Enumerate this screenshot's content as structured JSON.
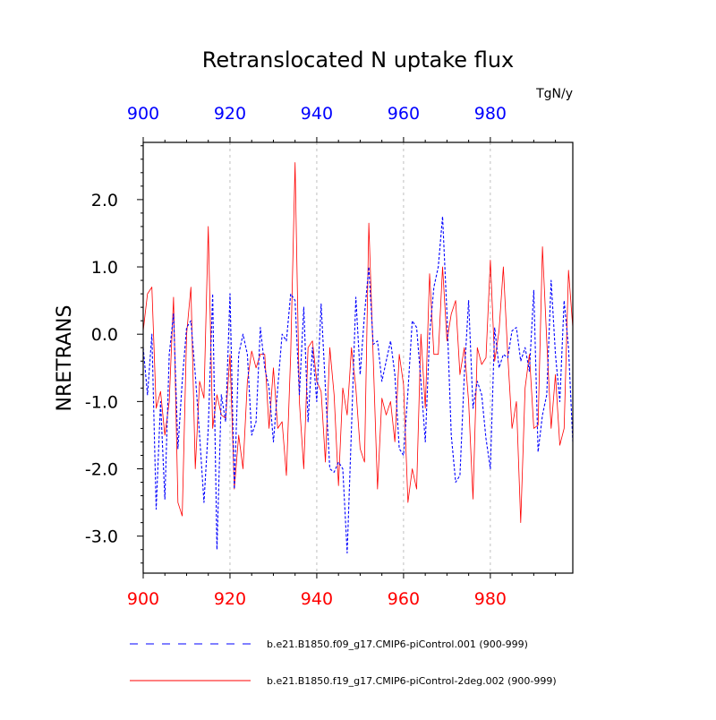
{
  "chart_data": {
    "type": "line",
    "title": "Retranslocated N uptake flux",
    "units": "TgN/y",
    "ylabel": "NRETRANS",
    "xlabel": "",
    "xlim": [
      900,
      999
    ],
    "ylim": [
      -3.55,
      2.85
    ],
    "grid": "vertical dashed at major x ticks",
    "x_ticks": [
      900,
      920,
      940,
      960,
      980
    ],
    "x_tick_labels_top": [
      "900",
      "920",
      "940",
      "960",
      "980"
    ],
    "x_tick_labels_bottom": [
      "900",
      "920",
      "940",
      "960",
      "980"
    ],
    "y_ticks": [
      -3.0,
      -2.0,
      -1.0,
      0.0,
      1.0,
      2.0
    ],
    "y_tick_labels": [
      "-3.0",
      "-2.0",
      "-1.0",
      "0.0",
      "1.0",
      "2.0"
    ],
    "colors": {
      "top_axis_labels": "#0000ff",
      "bottom_axis_labels": "#ff0000",
      "series_1": "#0000ff",
      "series_2": "#ff0000"
    },
    "legend_position": "bottom",
    "series": [
      {
        "name": "b.e21.B1850.f09_g17.CMIP6-piControl.001 (900-999)",
        "style": "dashed",
        "values": [
          -0.2,
          -0.9,
          0.0,
          -2.6,
          -1.0,
          -2.45,
          -0.3,
          0.3,
          -1.7,
          -0.7,
          0.1,
          0.2,
          -0.6,
          -1.5,
          -2.5,
          -1.4,
          0.6,
          -3.2,
          -0.9,
          -1.3,
          0.6,
          -2.3,
          -0.3,
          0.0,
          -0.3,
          -1.5,
          -1.3,
          0.1,
          -0.5,
          -0.8,
          -1.6,
          -0.8,
          0.0,
          -0.1,
          0.6,
          0.5,
          -0.9,
          0.4,
          -1.3,
          -0.2,
          -1.0,
          0.45,
          -0.8,
          -2.0,
          -2.05,
          -1.9,
          -2.0,
          -3.25,
          -1.4,
          0.55,
          -0.6,
          0.3,
          1.0,
          -0.15,
          -0.1,
          -0.7,
          -0.4,
          -0.1,
          -0.6,
          -1.7,
          -1.8,
          -0.85,
          0.2,
          0.1,
          -0.7,
          -1.6,
          0.0,
          0.7,
          1.0,
          1.75,
          0.3,
          -1.5,
          -2.2,
          -2.1,
          -0.6,
          0.5,
          -1.1,
          -0.7,
          -0.9,
          -1.55,
          -2.0,
          0.1,
          -0.5,
          -0.3,
          -0.35,
          0.05,
          0.1,
          -0.4,
          -0.2,
          -0.55,
          0.65,
          -1.75,
          -1.2,
          -0.9,
          0.8,
          -0.3,
          -1.0,
          0.5,
          -0.2,
          -1.6
        ]
      },
      {
        "name": "b.e21.B1850.f19_g17.CMIP6-piControl-2deg.002 (900-999)",
        "style": "solid",
        "values": [
          0.05,
          0.6,
          0.7,
          -1.1,
          -0.85,
          -1.5,
          -1.0,
          0.55,
          -2.5,
          -2.7,
          0.0,
          0.7,
          -2.0,
          -0.7,
          -0.95,
          1.6,
          -1.4,
          -0.9,
          -1.2,
          -1.25,
          -0.3,
          -2.3,
          -1.5,
          -2.0,
          -0.7,
          -0.25,
          -0.5,
          -0.3,
          -0.3,
          -1.4,
          -0.5,
          -1.4,
          -1.3,
          -2.1,
          -0.3,
          2.55,
          -1.0,
          -2.0,
          -0.2,
          -0.1,
          -0.7,
          -0.85,
          -1.9,
          -0.2,
          -0.9,
          -2.25,
          -0.8,
          -1.2,
          -0.2,
          -0.8,
          -1.7,
          -1.9,
          1.65,
          -0.35,
          -2.3,
          -0.95,
          -1.2,
          -1.0,
          -1.6,
          -0.3,
          -0.75,
          -2.5,
          -2.0,
          -2.3,
          0.0,
          -1.1,
          0.9,
          -0.3,
          -0.3,
          1.0,
          -0.1,
          0.3,
          0.5,
          -0.6,
          -0.2,
          -1.0,
          -2.45,
          -0.2,
          -0.45,
          -0.35,
          1.1,
          -0.4,
          0.05,
          1.0,
          -0.3,
          -1.4,
          -1.0,
          -2.8,
          -0.8,
          -0.3,
          -1.4,
          -1.35,
          1.3,
          -0.1,
          -1.4,
          -0.6,
          -1.65,
          -1.4,
          0.95,
          0.1
        ]
      }
    ]
  }
}
